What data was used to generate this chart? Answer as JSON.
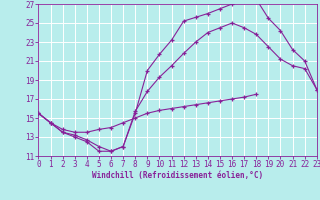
{
  "xlabel": "Windchill (Refroidissement éolien,°C)",
  "xlim": [
    0,
    23
  ],
  "ylim": [
    11,
    27
  ],
  "xticks": [
    0,
    1,
    2,
    3,
    4,
    5,
    6,
    7,
    8,
    9,
    10,
    11,
    12,
    13,
    14,
    15,
    16,
    17,
    18,
    19,
    20,
    21,
    22,
    23
  ],
  "yticks": [
    11,
    13,
    15,
    17,
    19,
    21,
    23,
    25,
    27
  ],
  "background_color": "#b8edec",
  "grid_color": "#ffffff",
  "line_color": "#882299",
  "curve_upper_x": [
    0,
    1,
    2,
    3,
    4,
    5,
    6,
    7,
    8,
    9,
    10,
    11,
    12,
    13,
    14,
    15,
    16,
    17,
    18
  ],
  "curve_upper_y": [
    15.5,
    14.5,
    13.5,
    13.0,
    12.5,
    11.5,
    11.5,
    12.0,
    15.5,
    20.0,
    21.7,
    23.2,
    25.2,
    25.6,
    26.0,
    26.5,
    27.0,
    27.3,
    27.5
  ],
  "curve_back_x": [
    18,
    19,
    20,
    21,
    22,
    23
  ],
  "curve_back_y": [
    27.5,
    25.5,
    24.2,
    22.2,
    21.0,
    18.0
  ],
  "curve_mid_x": [
    0,
    1,
    2,
    3,
    4,
    5,
    6,
    7,
    8,
    9,
    10,
    11,
    12,
    13,
    14,
    15,
    16,
    17,
    18,
    19,
    20,
    21,
    22,
    23
  ],
  "curve_mid_y": [
    15.5,
    14.5,
    13.5,
    13.2,
    12.7,
    12.0,
    11.5,
    12.0,
    15.7,
    17.8,
    19.3,
    20.5,
    21.8,
    23.0,
    24.0,
    24.5,
    25.0,
    24.5,
    23.8,
    22.5,
    21.2,
    20.5,
    20.2,
    18.0
  ],
  "curve_low_x": [
    0,
    1,
    2,
    3,
    4,
    5,
    6,
    7,
    8,
    9,
    10,
    11,
    12,
    13,
    14,
    15,
    16,
    17,
    18
  ],
  "curve_low_y": [
    15.5,
    14.5,
    13.8,
    13.5,
    13.5,
    13.8,
    14.0,
    14.5,
    15.0,
    15.5,
    15.8,
    16.0,
    16.2,
    16.4,
    16.6,
    16.8,
    17.0,
    17.2,
    17.5
  ],
  "tick_fontsize": 5.5,
  "xlabel_fontsize": 5.5
}
